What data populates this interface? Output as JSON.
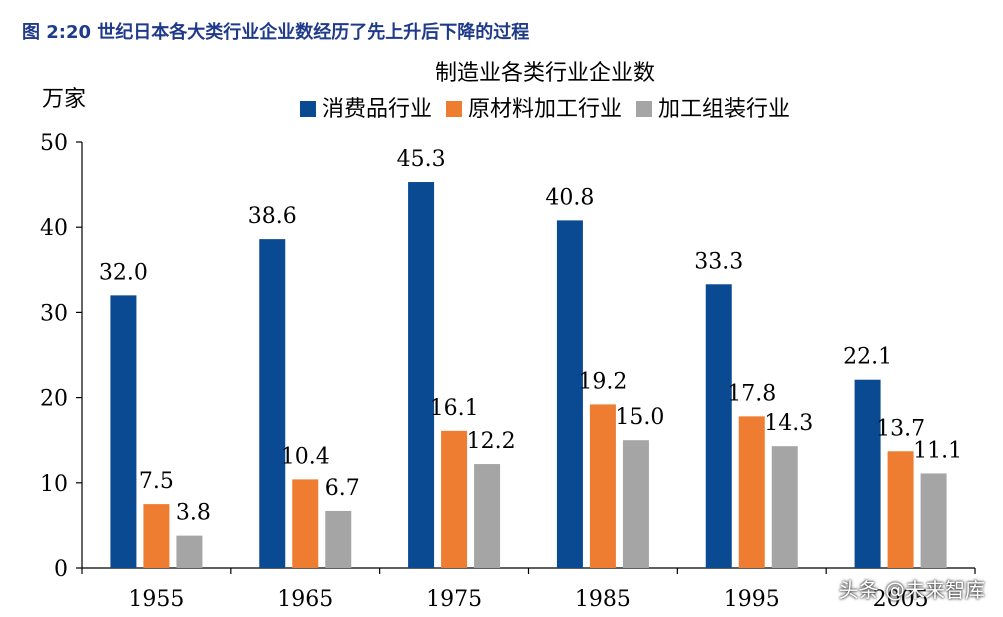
{
  "figure_title": "图 2:20 世纪日本各大类行业企业数经历了先上升后下降的过程",
  "watermark": "头条 @未来智库",
  "chart_data": {
    "type": "bar",
    "title": "制造业各类行业企业数",
    "ylabel": "万家",
    "xlabel": "",
    "ylim": [
      0,
      50
    ],
    "yticks": [
      0,
      10,
      20,
      30,
      40,
      50
    ],
    "grid": false,
    "legend_position": "top",
    "categories": [
      "1955",
      "1965",
      "1975",
      "1985",
      "1995",
      "2005"
    ],
    "series": [
      {
        "name": "消费品行业",
        "color": "#0a4a93",
        "values": [
          32.0,
          38.6,
          45.3,
          40.8,
          33.3,
          22.1
        ]
      },
      {
        "name": "原材料加工行业",
        "color": "#ee7d31",
        "values": [
          7.5,
          10.4,
          16.1,
          19.2,
          17.8,
          13.7
        ]
      },
      {
        "name": "加工组装行业",
        "color": "#a5a5a5",
        "values": [
          3.8,
          6.7,
          12.2,
          15.0,
          14.3,
          11.1
        ]
      }
    ]
  }
}
